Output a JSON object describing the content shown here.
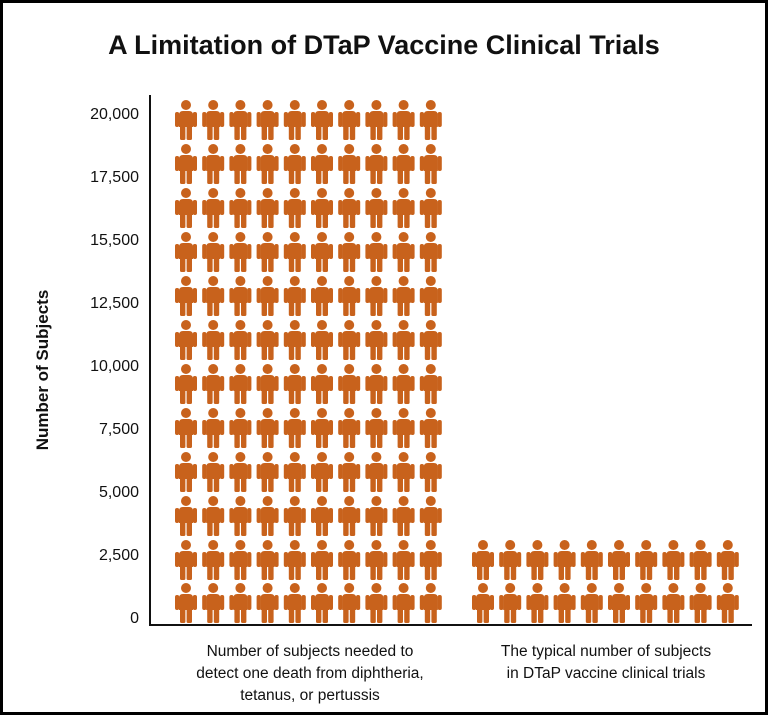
{
  "chart_data": {
    "type": "pictogram-bar",
    "title": "A Limitation of DTaP Vaccine Clinical Trials",
    "ylabel": "Number of Subjects",
    "xlabel": "",
    "ylim": [
      0,
      20000
    ],
    "yticks": [
      0,
      2500,
      5000,
      7500,
      10000,
      12500,
      15500,
      17500,
      20000
    ],
    "ytick_labels": [
      "0",
      "2,500",
      "5,000",
      "7,500",
      "10,000",
      "12,500",
      "15,500",
      "17,500",
      "20,000"
    ],
    "categories": [
      [
        "Number of subjects needed to",
        "detect one death from diphtheria,",
        "tetanus, or pertussis"
      ],
      [
        "The typical number of subjects",
        "in DTaP vaccine clinical trials"
      ]
    ],
    "values": [
      20000,
      3000
    ],
    "icons_per_row": 10,
    "icon": "person-icon",
    "color": "#c8621c",
    "grid": false
  }
}
